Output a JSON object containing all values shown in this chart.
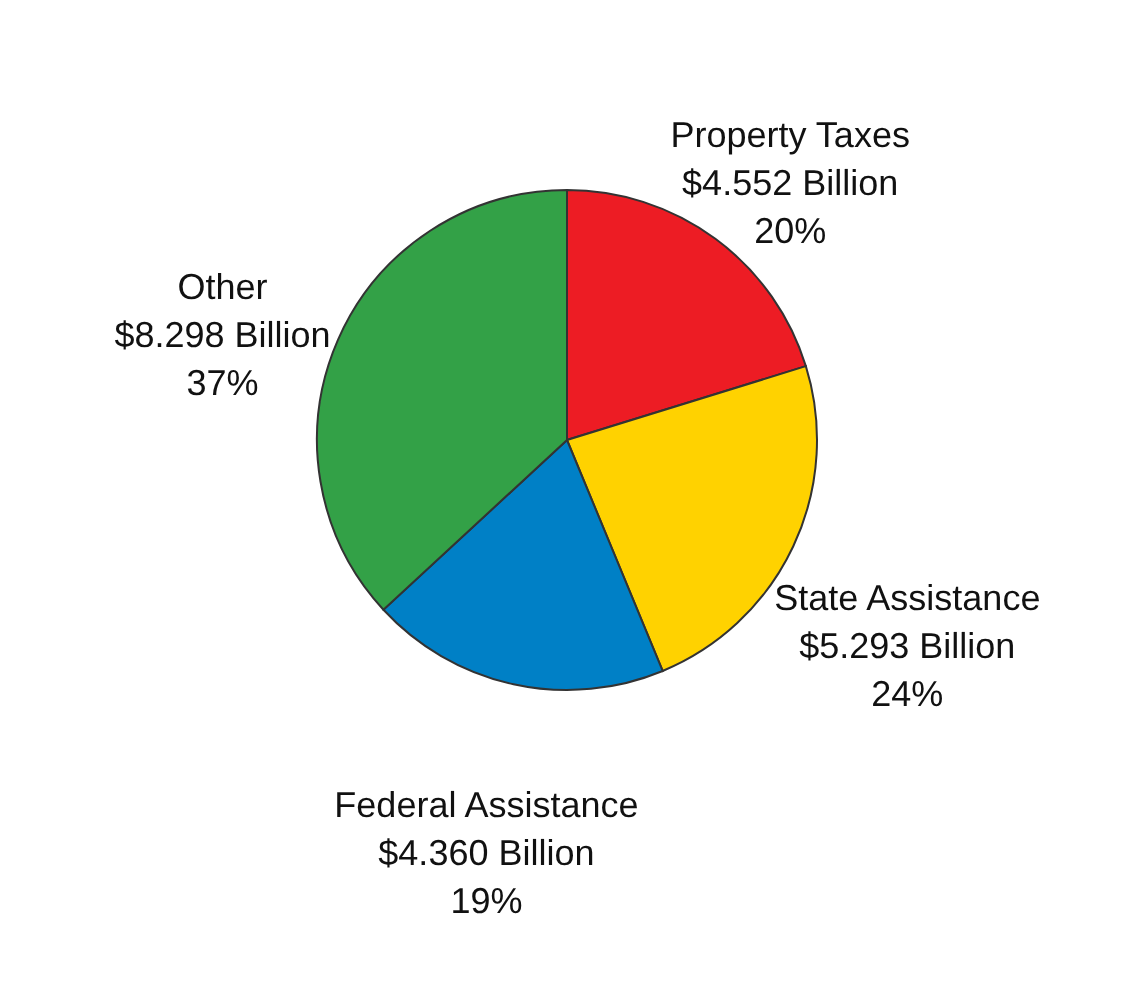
{
  "chart_data": {
    "type": "pie",
    "categories": [
      "Property Taxes",
      "State Assistance",
      "Federal Assistance",
      "Other"
    ],
    "values": [
      4.552,
      5.293,
      4.36,
      8.298
    ],
    "colors": [
      "#ed1c24",
      "#ffd200",
      "#0080c6",
      "#33a147"
    ],
    "value_labels": [
      "$4.552 Billion\n20%",
      "$5.293 Billion\n24%",
      "$4.360 Billion\n19%",
      "$8.298 Billion\n37%"
    ]
  }
}
